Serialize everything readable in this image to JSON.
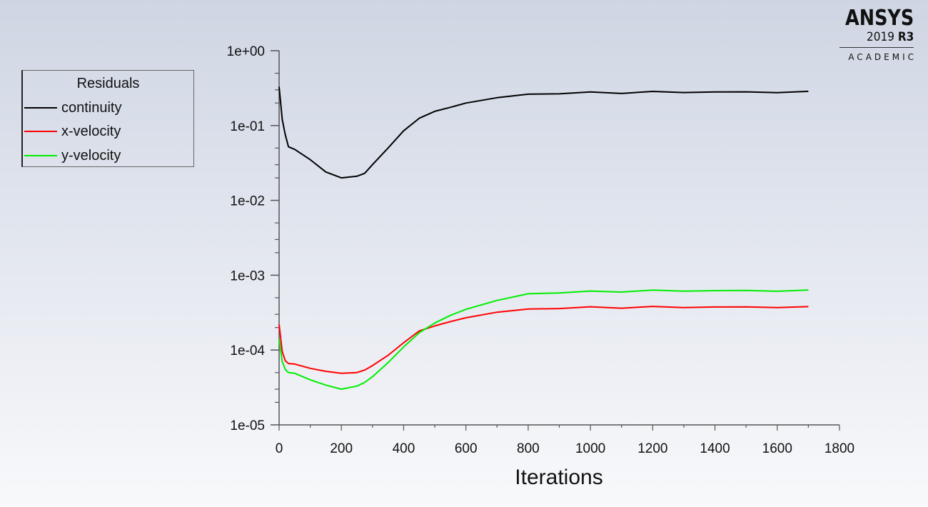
{
  "logo": {
    "brand": "ANSYS",
    "version_year": "2019",
    "version_release": "R3",
    "edition": "ACADEMIC"
  },
  "legend": {
    "title": "Residuals",
    "items": [
      {
        "label": "continuity",
        "color": "#000000"
      },
      {
        "label": "x-velocity",
        "color": "#ff0000"
      },
      {
        "label": "y-velocity",
        "color": "#00ee00"
      }
    ]
  },
  "chart_data": {
    "type": "line",
    "title": "",
    "xlabel": "Iterations",
    "ylabel": "",
    "xlim": [
      0,
      1800
    ],
    "ylim": [
      1e-05,
      1
    ],
    "yscale": "log",
    "grid": false,
    "legend_position": "upper-left-outside",
    "legend_title": "Residuals",
    "x_ticks": [
      "0",
      "200",
      "400",
      "600",
      "800",
      "1000",
      "1200",
      "1400",
      "1600",
      "1800"
    ],
    "y_ticks": [
      "1e-05",
      "1e-04",
      "1e-03",
      "1e-02",
      "1e-01",
      "1e+00"
    ],
    "x": [
      0,
      10,
      20,
      30,
      50,
      100,
      150,
      200,
      250,
      275,
      300,
      350,
      400,
      450,
      500,
      550,
      600,
      700,
      800,
      900,
      1000,
      1100,
      1200,
      1300,
      1400,
      1500,
      1600,
      1700
    ],
    "series": [
      {
        "name": "continuity",
        "color": "#000000",
        "values": [
          0.33,
          0.12,
          0.075,
          0.052,
          0.048,
          0.035,
          0.024,
          0.02,
          0.021,
          0.023,
          0.03,
          0.05,
          0.085,
          0.125,
          0.155,
          0.175,
          0.2,
          0.235,
          0.26,
          0.27,
          0.275,
          0.275,
          0.28,
          0.28,
          0.28,
          0.28,
          0.28,
          0.28
        ]
      },
      {
        "name": "x-velocity",
        "color": "#ff0000",
        "values": [
          0.00022,
          9.5e-05,
          7.2e-05,
          6.6e-05,
          6.5e-05,
          5.7e-05,
          5.2e-05,
          4.9e-05,
          5e-05,
          5.4e-05,
          6.2e-05,
          8.5e-05,
          0.000125,
          0.00018,
          0.00021,
          0.00024,
          0.00027,
          0.00032,
          0.00035,
          0.000365,
          0.00037,
          0.000372,
          0.000375,
          0.000375,
          0.000375,
          0.000375,
          0.000375,
          0.000372
        ]
      },
      {
        "name": "y-velocity",
        "color": "#00ee00",
        "values": [
          0.00014,
          7e-05,
          5.5e-05,
          5e-05,
          4.9e-05,
          4e-05,
          3.4e-05,
          3e-05,
          3.3e-05,
          3.7e-05,
          4.4e-05,
          6.8e-05,
          0.00011,
          0.00017,
          0.00023,
          0.00029,
          0.00035,
          0.00046,
          0.00056,
          0.00059,
          0.0006,
          0.00061,
          0.00062,
          0.00062,
          0.00062,
          0.00062,
          0.00062,
          0.00062
        ]
      }
    ]
  }
}
